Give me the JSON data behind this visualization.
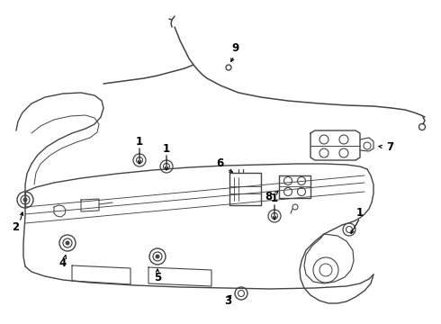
{
  "bg_color": "#ffffff",
  "line_color": "#444444",
  "text_color": "#000000",
  "lw_main": 0.9,
  "lw_thin": 0.6,
  "lw_wire": 1.2
}
